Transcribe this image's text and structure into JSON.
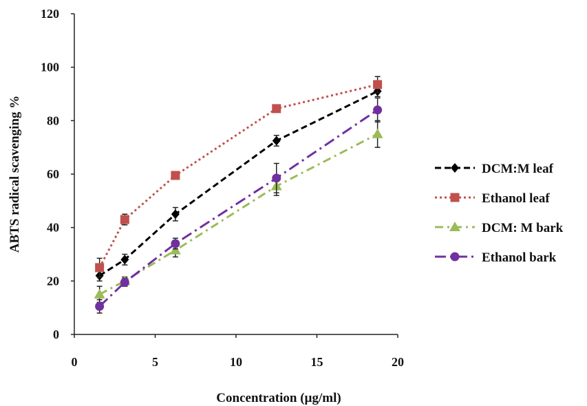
{
  "chart_data": {
    "type": "line",
    "xlabel": "Concentration (µg/ml)",
    "ylabel": "ABTS radical scavenging %",
    "xlim": [
      0,
      20
    ],
    "ylim": [
      0,
      120
    ],
    "xticks": [
      0,
      5,
      10,
      15,
      20
    ],
    "yticks": [
      0,
      20,
      40,
      60,
      80,
      100,
      120
    ],
    "x_tick_labels": [
      "0",
      "5",
      "10",
      "15",
      "20"
    ],
    "y_tick_labels": [
      "0",
      "20",
      "40",
      "60",
      "80",
      "100",
      "120"
    ],
    "grid": false,
    "legend_position": "right",
    "series": [
      {
        "name": "DCM:M leaf",
        "color": "#000000",
        "marker": "diamond",
        "line_style": "dashed",
        "x": [
          1.56,
          3.12,
          6.25,
          12.5,
          18.75
        ],
        "y": [
          22,
          28,
          45,
          72.5,
          91
        ],
        "error": [
          2,
          2,
          2.5,
          2,
          2
        ]
      },
      {
        "name": "Ethanol leaf",
        "color": "#c0504d",
        "marker": "square",
        "line_style": "dotted",
        "x": [
          1.56,
          3.12,
          6.25,
          12.5,
          18.75
        ],
        "y": [
          25,
          43,
          59.5,
          84.5,
          93.5
        ],
        "error": [
          3.5,
          2,
          0,
          0,
          3
        ]
      },
      {
        "name": "DCM: M bark",
        "color": "#9bbb59",
        "marker": "triangle",
        "line_style": "dashdot",
        "x": [
          1.56,
          3.12,
          6.25,
          12.5,
          18.75
        ],
        "y": [
          15,
          20,
          31.5,
          55.5,
          75
        ],
        "error": [
          3,
          1.5,
          2.5,
          3.5,
          5
        ]
      },
      {
        "name": "Ethanol bark",
        "color": "#7030a0",
        "marker": "circle",
        "line_style": "longdashdot",
        "x": [
          1.56,
          3.12,
          6.25,
          12.5,
          18.75
        ],
        "y": [
          10.5,
          19.5,
          34,
          58.5,
          84
        ],
        "error": [
          2.5,
          1.5,
          2,
          5.5,
          4.5
        ]
      }
    ]
  }
}
